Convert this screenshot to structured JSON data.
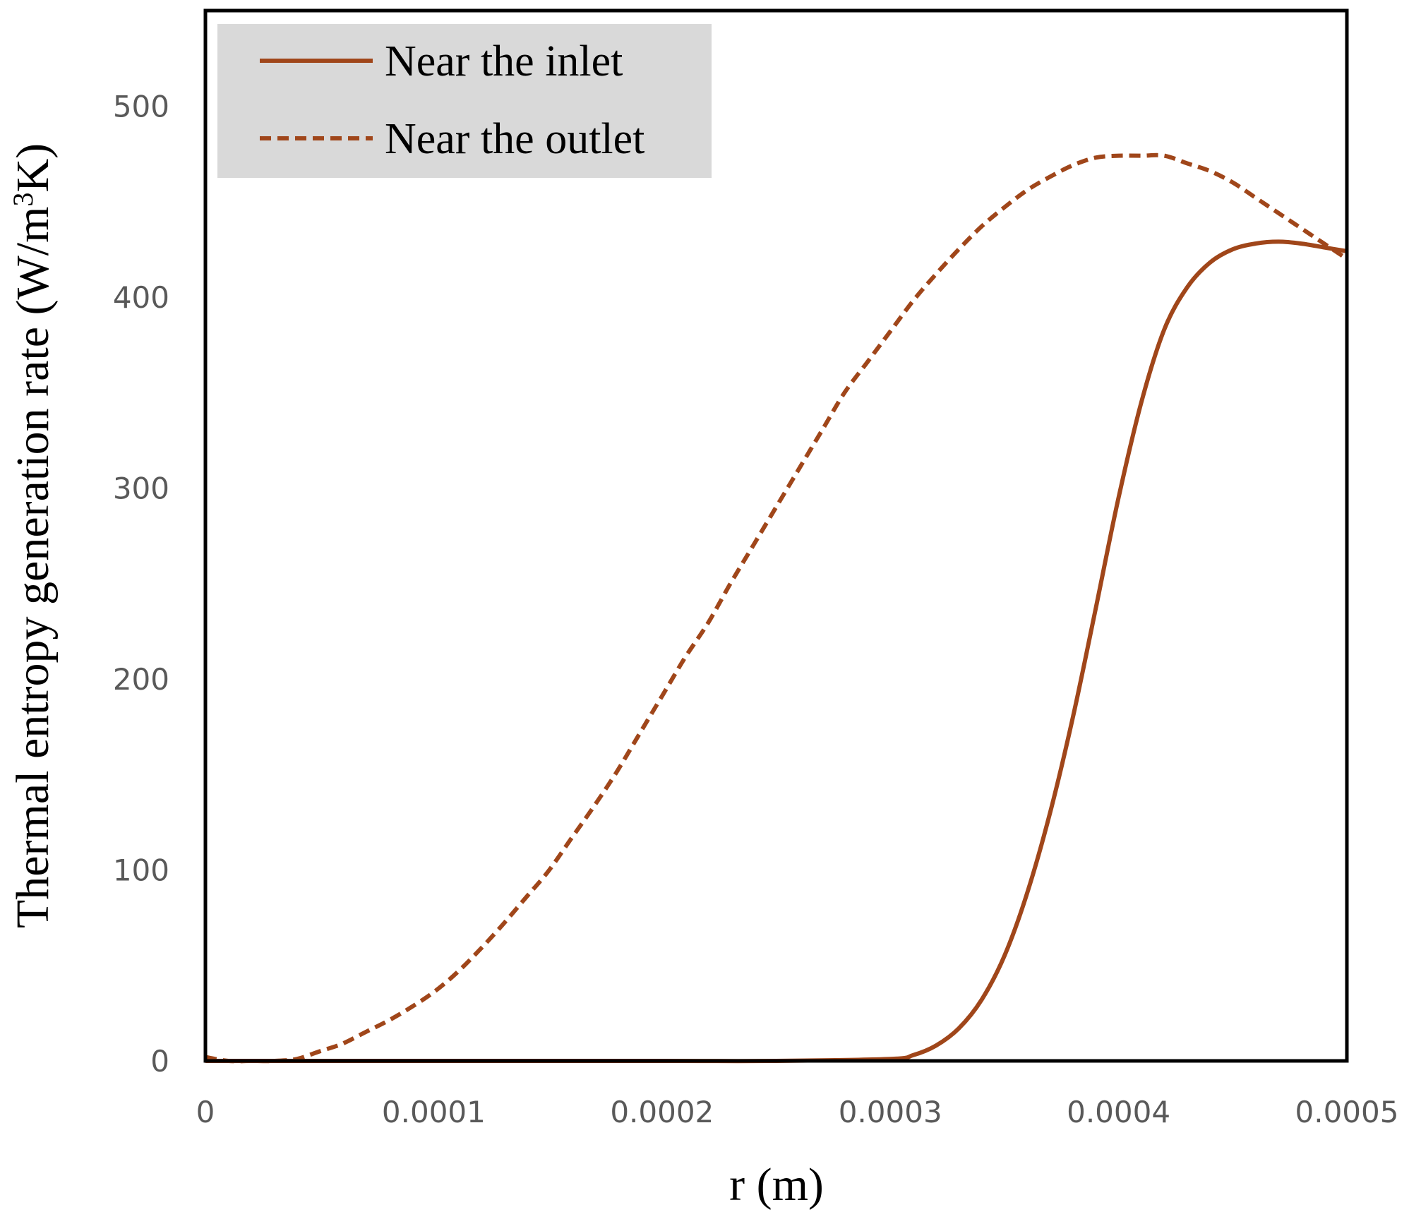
{
  "chart_data": {
    "type": "line",
    "title": "",
    "xlabel": "r (m)",
    "ylabel_main": "Thermal entropy generation rate (W/m",
    "ylabel_sup": "3",
    "ylabel_tail": "K)",
    "xlim": [
      0,
      0.0005
    ],
    "ylim": [
      0,
      550
    ],
    "xticks": [
      0,
      0.0001,
      0.0002,
      0.0003,
      0.0004,
      0.0005
    ],
    "xtick_labels": [
      "0",
      "0.0001",
      "0.0002",
      "0.0003",
      "0.0004",
      "0.0005"
    ],
    "yticks": [
      0,
      100,
      200,
      300,
      400,
      500
    ],
    "ytick_labels": [
      "0",
      "100",
      "200",
      "300",
      "400",
      "500"
    ],
    "grid": false,
    "legend_position": "top-left",
    "line_color": "#A0461A",
    "series": [
      {
        "name": "Near the inlet",
        "style": "solid",
        "x": [
          0,
          5e-05,
          0.0001,
          0.00015,
          0.0002,
          0.00025,
          0.0003,
          0.00031,
          0.00032,
          0.00033,
          0.00034,
          0.00035,
          0.00036,
          0.00037,
          0.00038,
          0.00039,
          0.0004,
          0.00041,
          0.00042,
          0.00043,
          0.00044,
          0.00045,
          0.00046,
          0.00047,
          0.00048,
          0.00049,
          0.0005
        ],
        "y": [
          0,
          0,
          0,
          0,
          0,
          0,
          1,
          3,
          8,
          17,
          32,
          55,
          88,
          130,
          180,
          237,
          295,
          345,
          383,
          405,
          418,
          425,
          428,
          429,
          428,
          426,
          424
        ]
      },
      {
        "name": "Near the outlet",
        "style": "dashed",
        "x": [
          0,
          1e-05,
          2e-05,
          3e-05,
          4e-05,
          5e-05,
          6e-05,
          7e-05,
          8e-05,
          9e-05,
          0.0001,
          0.00011,
          0.00012,
          0.00013,
          0.00014,
          0.00015,
          0.00016,
          0.00017,
          0.00018,
          0.00019,
          0.0002,
          0.00021,
          0.00022,
          0.00023,
          0.00024,
          0.00025,
          0.00026,
          0.00027,
          0.00028,
          0.00029,
          0.0003,
          0.00031,
          0.00032,
          0.00033,
          0.00034,
          0.00035,
          0.00036,
          0.00037,
          0.00038,
          0.00039,
          0.0004,
          0.00041,
          0.00042,
          0.00043,
          0.00044,
          0.00045,
          0.00046,
          0.00047,
          0.00048,
          0.00049,
          0.0005
        ],
        "y": [
          2,
          0,
          0,
          0,
          1,
          5,
          9,
          15,
          21,
          28,
          36,
          46,
          58,
          71,
          85,
          99,
          116,
          133,
          151,
          171,
          191,
          211,
          229,
          250,
          270,
          290,
          310,
          330,
          350,
          366,
          382,
          398,
          412,
          425,
          437,
          447,
          456,
          463,
          469,
          473,
          474,
          474,
          474,
          470,
          466,
          460,
          452,
          444,
          436,
          428,
          420
        ]
      }
    ]
  }
}
